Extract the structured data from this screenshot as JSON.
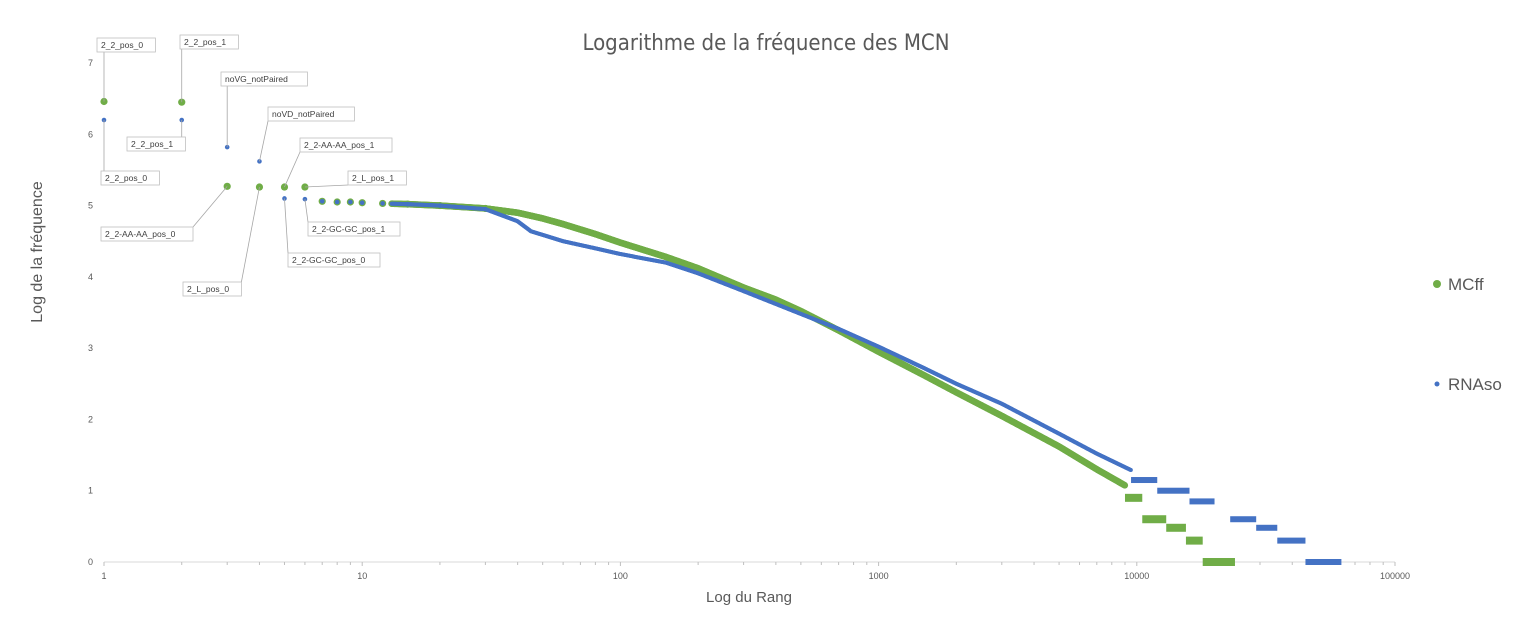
{
  "chart_data": {
    "type": "scatter",
    "title": "Logarithme de la fréquence des MCN",
    "xlabel": "Log du Rang",
    "ylabel": "Log de la fréquence",
    "x_scale": "log",
    "xlim": [
      1,
      100000
    ],
    "ylim": [
      0,
      7
    ],
    "x_ticks": [
      "1",
      "10",
      "100",
      "1000",
      "10000",
      "100000"
    ],
    "y_ticks": [
      "0",
      "1",
      "2",
      "3",
      "4",
      "5",
      "6",
      "7"
    ],
    "grid": false,
    "legend_position": "right",
    "series": [
      {
        "name": "MCff",
        "color": "#70ad47",
        "marker": "circle",
        "points": [
          [
            1,
            6.46
          ],
          [
            2,
            6.45
          ],
          [
            3,
            5.27
          ],
          [
            4,
            5.26
          ],
          [
            5,
            5.26
          ],
          [
            6,
            5.26
          ],
          [
            7,
            5.06
          ],
          [
            8,
            5.05
          ],
          [
            9,
            5.05
          ],
          [
            10,
            5.04
          ],
          [
            12,
            5.03
          ],
          [
            15,
            5.02
          ],
          [
            20,
            5.0
          ],
          [
            30,
            4.96
          ],
          [
            40,
            4.9
          ],
          [
            50,
            4.82
          ],
          [
            60,
            4.74
          ],
          [
            80,
            4.6
          ],
          [
            100,
            4.48
          ],
          [
            150,
            4.28
          ],
          [
            200,
            4.12
          ],
          [
            300,
            3.85
          ],
          [
            400,
            3.68
          ],
          [
            500,
            3.52
          ],
          [
            700,
            3.25
          ],
          [
            1000,
            2.95
          ],
          [
            1500,
            2.62
          ],
          [
            2000,
            2.38
          ],
          [
            3000,
            2.05
          ],
          [
            5000,
            1.62
          ],
          [
            7000,
            1.3
          ],
          [
            10000,
            0.98
          ],
          [
            13000,
            0.72
          ],
          [
            15000,
            0.6
          ],
          [
            20000,
            0.3
          ]
        ],
        "steps": [
          {
            "y": 0.9,
            "x_from": 9000,
            "x_to": 10500
          },
          {
            "y": 0.6,
            "x_from": 10500,
            "x_to": 13000
          },
          {
            "y": 0.48,
            "x_from": 13000,
            "x_to": 15500
          },
          {
            "y": 0.3,
            "x_from": 15500,
            "x_to": 18000
          },
          {
            "y": 0.0,
            "x_from": 18000,
            "x_to": 24000
          }
        ],
        "labels": [
          {
            "text": "2_2_pos_0",
            "x": 1,
            "y": 6.46
          },
          {
            "text": "2_2_pos_1",
            "x": 2,
            "y": 6.45
          },
          {
            "text": "2_2-AA-AA_pos_0",
            "x": 3,
            "y": 5.27
          },
          {
            "text": "2_L_pos_0",
            "x": 4,
            "y": 5.26
          },
          {
            "text": "2_2-AA-AA_pos_1",
            "x": 5,
            "y": 5.26
          },
          {
            "text": "2_L_pos_1",
            "x": 6,
            "y": 5.26
          }
        ]
      },
      {
        "name": "RNAso",
        "color": "#4472c4",
        "marker": "circle",
        "points": [
          [
            1,
            6.2
          ],
          [
            2,
            6.2
          ],
          [
            3,
            5.82
          ],
          [
            4,
            5.62
          ],
          [
            5,
            5.1
          ],
          [
            6,
            5.09
          ],
          [
            7,
            5.06
          ],
          [
            8,
            5.05
          ],
          [
            9,
            5.05
          ],
          [
            10,
            5.04
          ],
          [
            12,
            5.03
          ],
          [
            15,
            5.02
          ],
          [
            20,
            5.0
          ],
          [
            30,
            4.95
          ],
          [
            40,
            4.78
          ],
          [
            45,
            4.64
          ],
          [
            60,
            4.5
          ],
          [
            80,
            4.4
          ],
          [
            100,
            4.32
          ],
          [
            150,
            4.2
          ],
          [
            200,
            4.05
          ],
          [
            300,
            3.8
          ],
          [
            400,
            3.62
          ],
          [
            500,
            3.48
          ],
          [
            700,
            3.27
          ],
          [
            1000,
            3.02
          ],
          [
            1500,
            2.72
          ],
          [
            2000,
            2.5
          ],
          [
            3000,
            2.22
          ],
          [
            5000,
            1.8
          ],
          [
            7000,
            1.52
          ],
          [
            10000,
            1.25
          ],
          [
            15000,
            0.95
          ],
          [
            20000,
            0.75
          ],
          [
            30000,
            0.5
          ],
          [
            40000,
            0.3
          ],
          [
            60000,
            0.0
          ]
        ],
        "steps": [
          {
            "y": 1.15,
            "x_from": 9500,
            "x_to": 12000
          },
          {
            "y": 1.0,
            "x_from": 12000,
            "x_to": 16000
          },
          {
            "y": 0.85,
            "x_from": 16000,
            "x_to": 20000
          },
          {
            "y": 0.6,
            "x_from": 23000,
            "x_to": 29000
          },
          {
            "y": 0.48,
            "x_from": 29000,
            "x_to": 35000
          },
          {
            "y": 0.3,
            "x_from": 35000,
            "x_to": 45000
          },
          {
            "y": 0.0,
            "x_from": 45000,
            "x_to": 62000
          }
        ],
        "labels": [
          {
            "text": "2_2_pos_0",
            "x": 1,
            "y": 6.2
          },
          {
            "text": "2_2_pos_1",
            "x": 2,
            "y": 6.2
          },
          {
            "text": "noVG_notPaired",
            "x": 3,
            "y": 5.82
          },
          {
            "text": "noVD_notPaired",
            "x": 4,
            "y": 5.62
          },
          {
            "text": "2_2-GC-GC_pos_0",
            "x": 5,
            "y": 5.1
          },
          {
            "text": "2_2-GC-GC_pos_1",
            "x": 6,
            "y": 5.09
          }
        ]
      }
    ]
  }
}
